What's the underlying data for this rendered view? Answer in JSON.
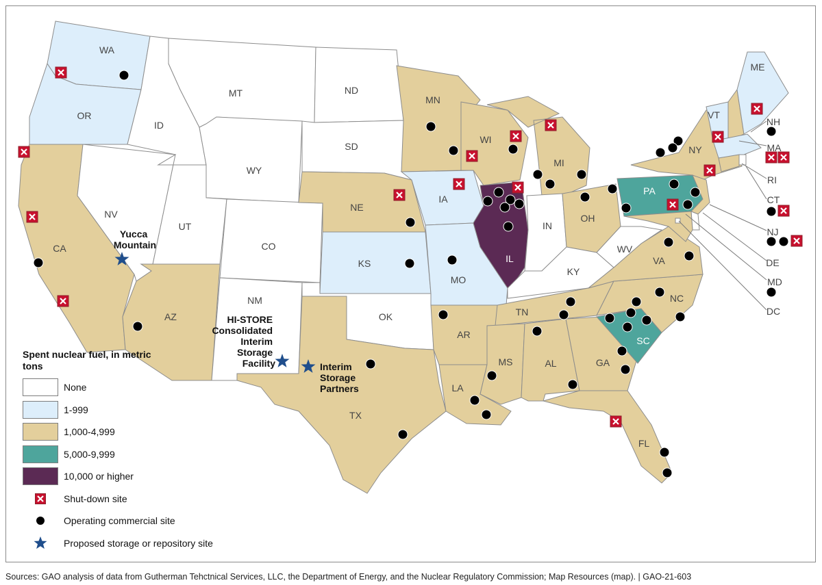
{
  "legend": {
    "title": "Spent nuclear fuel, in metric tons",
    "categories": [
      {
        "label": "None",
        "color": "#ffffff"
      },
      {
        "label": "1-999",
        "color": "#ddeefb"
      },
      {
        "label": "1,000-4,999",
        "color": "#e3cf9c"
      },
      {
        "label": "5,000-9,999",
        "color": "#4ea59c"
      },
      {
        "label": "10,000 or higher",
        "color": "#5b2a54"
      }
    ],
    "symbols": [
      {
        "label": "Shut-down site",
        "icon": "shut-down-site-icon"
      },
      {
        "label": "Operating commercial site",
        "icon": "operating-site-icon"
      },
      {
        "label": "Proposed storage or repository site",
        "icon": "proposed-site-star-icon"
      }
    ]
  },
  "states": {
    "WA": {
      "label": "WA",
      "category": "1-999"
    },
    "OR": {
      "label": "OR",
      "category": "1-999"
    },
    "CA": {
      "label": "CA",
      "category": "1,000-4,999"
    },
    "NV": {
      "label": "NV",
      "category": "None"
    },
    "ID": {
      "label": "ID",
      "category": "None"
    },
    "MT": {
      "label": "MT",
      "category": "None"
    },
    "WY": {
      "label": "WY",
      "category": "None"
    },
    "UT": {
      "label": "UT",
      "category": "None"
    },
    "CO": {
      "label": "CO",
      "category": "None"
    },
    "AZ": {
      "label": "AZ",
      "category": "1,000-4,999"
    },
    "NM": {
      "label": "NM",
      "category": "None"
    },
    "ND": {
      "label": "ND",
      "category": "None"
    },
    "SD": {
      "label": "SD",
      "category": "None"
    },
    "NE": {
      "label": "NE",
      "category": "1,000-4,999"
    },
    "KS": {
      "label": "KS",
      "category": "1-999"
    },
    "OK": {
      "label": "OK",
      "category": "None"
    },
    "TX": {
      "label": "TX",
      "category": "1,000-4,999"
    },
    "MN": {
      "label": "MN",
      "category": "1,000-4,999"
    },
    "IA": {
      "label": "IA",
      "category": "1-999"
    },
    "MO": {
      "label": "MO",
      "category": "1-999"
    },
    "AR": {
      "label": "AR",
      "category": "1,000-4,999"
    },
    "LA": {
      "label": "LA",
      "category": "1,000-4,999"
    },
    "WI": {
      "label": "WI",
      "category": "1,000-4,999"
    },
    "IL": {
      "label": "IL",
      "category": "10,000 or higher"
    },
    "MI": {
      "label": "MI",
      "category": "1,000-4,999"
    },
    "IN": {
      "label": "IN",
      "category": "None"
    },
    "OH": {
      "label": "OH",
      "category": "1,000-4,999"
    },
    "KY": {
      "label": "KY",
      "category": "None"
    },
    "TN": {
      "label": "TN",
      "category": "1,000-4,999"
    },
    "MS": {
      "label": "MS",
      "category": "1,000-4,999"
    },
    "AL": {
      "label": "AL",
      "category": "1,000-4,999"
    },
    "GA": {
      "label": "GA",
      "category": "1,000-4,999"
    },
    "FL": {
      "label": "FL",
      "category": "1,000-4,999"
    },
    "SC": {
      "label": "SC",
      "category": "5,000-9,999"
    },
    "NC": {
      "label": "NC",
      "category": "1,000-4,999"
    },
    "VA": {
      "label": "VA",
      "category": "1,000-4,999"
    },
    "WV": {
      "label": "WV",
      "category": "None"
    },
    "PA": {
      "label": "PA",
      "category": "5,000-9,999"
    },
    "NY": {
      "label": "NY",
      "category": "1,000-4,999"
    },
    "VT": {
      "label": "VT",
      "category": "1-999"
    },
    "NH": {
      "label": "NH",
      "category": "1,000-4,999"
    },
    "ME": {
      "label": "ME",
      "category": "1-999"
    },
    "MA": {
      "label": "MA",
      "category": "1-999"
    },
    "RI": {
      "label": "RI",
      "category": "None"
    },
    "CT": {
      "label": "CT",
      "category": "1,000-4,999"
    },
    "NJ": {
      "label": "NJ",
      "category": "1,000-4,999"
    },
    "DE": {
      "label": "DE",
      "category": "None"
    },
    "MD": {
      "label": "MD",
      "category": "1,000-4,999"
    },
    "DC": {
      "label": "DC",
      "category": "None"
    }
  },
  "proposed_sites": [
    {
      "name": "Yucca Mountain",
      "lines": [
        "Yucca",
        "Mountain"
      ]
    },
    {
      "name": "HI-STORE Consolidated Interim Storage Facility",
      "lines": [
        "HI-STORE",
        "Consolidated",
        "Interim",
        "Storage",
        "Facility"
      ]
    },
    {
      "name": "Interim Storage Partners",
      "lines": [
        "Interim",
        "Storage",
        "Partners"
      ]
    }
  ],
  "source": "Sources: GAO analysis of data from Gutherman Tehctnical Services, LLC, the Department of Energy, and the Nuclear Regulatory Commission; Map Resources (map).  |  GAO-21-603"
}
